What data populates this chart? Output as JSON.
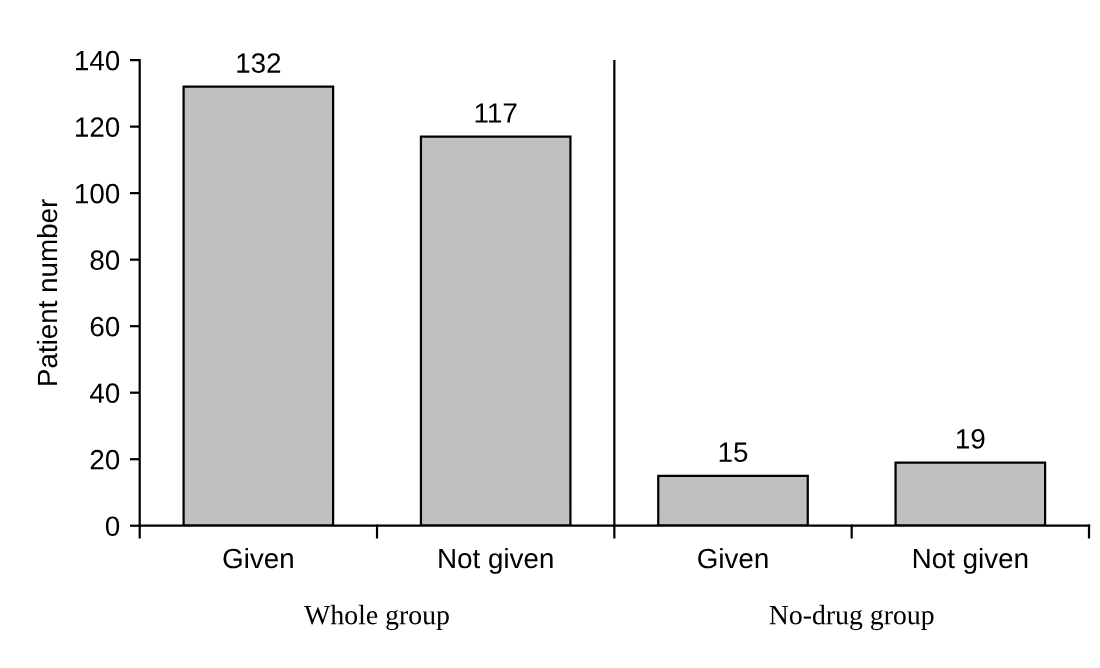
{
  "chart_data": {
    "type": "bar",
    "ylabel": "Patient number",
    "categories": [
      "Given",
      "Not given",
      "Given",
      "Not given"
    ],
    "values": [
      132,
      117,
      15,
      19
    ],
    "color": "#c0c0c0",
    "ylim": [
      0,
      140
    ],
    "yticks": [
      0,
      20,
      40,
      60,
      80,
      100,
      120,
      140
    ],
    "data_labels": true,
    "grid": false,
    "legend": false,
    "annotations": [
      "Whole group",
      "No-drug group"
    ]
  }
}
